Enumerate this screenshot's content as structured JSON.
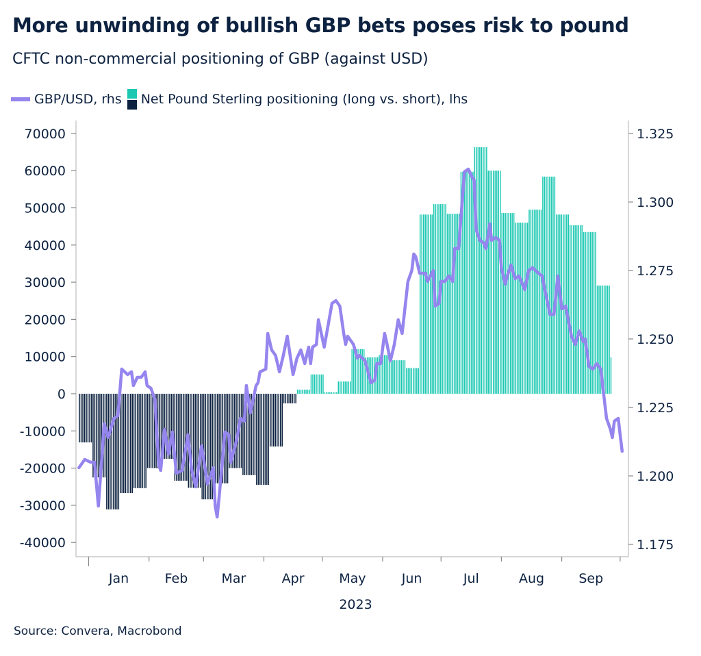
{
  "title": "More unwinding of bullish GBP bets poses risk to pound",
  "subtitle": "CFTC non-commercial positioning of GBP (against USD)",
  "source": "Source: Convera, Macrobond",
  "legend": {
    "line_label": "GBP/USD, rhs",
    "bar_label": "Net Pound Sterling positioning (long vs. short), lhs"
  },
  "colors": {
    "line": "#9585ee",
    "bar_positive": "#1cc8b2",
    "bar_negative": "#0d2240",
    "text": "#0d2240",
    "axis": "#c8c8c8"
  },
  "chart_data": {
    "type": "bar+line",
    "title": "More unwinding of bullish GBP bets poses risk to pound",
    "xlabel": "2023",
    "x_ticks": [
      "Jan",
      "Feb",
      "Mar",
      "Apr",
      "May",
      "Jun",
      "Jul",
      "Aug",
      "Sep"
    ],
    "y_left": {
      "ticks": [
        "70000",
        "60000",
        "50000",
        "40000",
        "30000",
        "20000",
        "10000",
        "0",
        "-10000",
        "-20000",
        "-30000",
        "-40000"
      ],
      "ylim": [
        -40000,
        70000
      ]
    },
    "y_right": {
      "ticks": [
        "1.325",
        "1.300",
        "1.275",
        "1.250",
        "1.225",
        "1.200",
        "1.175"
      ],
      "ylim": [
        1.175,
        1.325
      ]
    },
    "grid": false,
    "legend_position": "top-left",
    "bars": {
      "name": "Net Pound Sterling positioning (long vs. short), lhs",
      "axis": "left",
      "points": [
        [
          "2022-12-27",
          -13100
        ],
        [
          "2023-01-03",
          -22500
        ],
        [
          "2023-01-10",
          -31100
        ],
        [
          "2023-01-17",
          -26700
        ],
        [
          "2023-01-24",
          -25400
        ],
        [
          "2023-01-31",
          -20000
        ],
        [
          "2023-02-07",
          -17500
        ],
        [
          "2023-02-14",
          -23400
        ],
        [
          "2023-02-21",
          -25300
        ],
        [
          "2023-02-28",
          -28400
        ],
        [
          "2023-03-07",
          -24100
        ],
        [
          "2023-03-14",
          -20000
        ],
        [
          "2023-03-21",
          -21900
        ],
        [
          "2023-03-28",
          -24500
        ],
        [
          "2023-04-04",
          -14200
        ],
        [
          "2023-04-11",
          -2600
        ],
        [
          "2023-04-18",
          1100
        ],
        [
          "2023-04-25",
          5200
        ],
        [
          "2023-05-02",
          400
        ],
        [
          "2023-05-09",
          3300
        ],
        [
          "2023-05-16",
          12000
        ],
        [
          "2023-05-23",
          9800
        ],
        [
          "2023-05-30",
          10400
        ],
        [
          "2023-06-06",
          9000
        ],
        [
          "2023-06-13",
          6900
        ],
        [
          "2023-06-20",
          48200
        ],
        [
          "2023-06-27",
          51000
        ],
        [
          "2023-07-04",
          48400
        ],
        [
          "2023-07-11",
          59700
        ],
        [
          "2023-07-18",
          66300
        ],
        [
          "2023-07-25",
          60000
        ],
        [
          "2023-08-01",
          48600
        ],
        [
          "2023-08-08",
          46000
        ],
        [
          "2023-08-15",
          49500
        ],
        [
          "2023-08-22",
          58400
        ],
        [
          "2023-08-29",
          48200
        ],
        [
          "2023-09-05",
          45300
        ],
        [
          "2023-09-12",
          43500
        ],
        [
          "2023-09-19",
          29100
        ],
        [
          "2023-09-26",
          9800
        ]
      ]
    },
    "line": {
      "name": "GBP/USD, rhs",
      "axis": "right",
      "points": [
        [
          "2022-12-27",
          1.203
        ],
        [
          "2022-12-30",
          1.206
        ],
        [
          "2023-01-02",
          1.205
        ],
        [
          "2023-01-04",
          1.205
        ],
        [
          "2023-01-06",
          1.189
        ],
        [
          "2023-01-09",
          1.219
        ],
        [
          "2023-01-11",
          1.214
        ],
        [
          "2023-01-14",
          1.221
        ],
        [
          "2023-01-16",
          1.222
        ],
        [
          "2023-01-18",
          1.239
        ],
        [
          "2023-01-21",
          1.237
        ],
        [
          "2023-01-23",
          1.238
        ],
        [
          "2023-01-24",
          1.233
        ],
        [
          "2023-01-26",
          1.236
        ],
        [
          "2023-01-28",
          1.236
        ],
        [
          "2023-01-30",
          1.238
        ],
        [
          "2023-01-31",
          1.233
        ],
        [
          "2023-02-02",
          1.232
        ],
        [
          "2023-02-04",
          1.228
        ],
        [
          "2023-02-06",
          1.204
        ],
        [
          "2023-02-07",
          1.202
        ],
        [
          "2023-02-09",
          1.217
        ],
        [
          "2023-02-11",
          1.208
        ],
        [
          "2023-02-13",
          1.216
        ],
        [
          "2023-02-15",
          1.201
        ],
        [
          "2023-02-18",
          1.202
        ],
        [
          "2023-02-21",
          1.215
        ],
        [
          "2023-02-23",
          1.202
        ],
        [
          "2023-02-25",
          1.196
        ],
        [
          "2023-02-28",
          1.211
        ],
        [
          "2023-03-03",
          1.197
        ],
        [
          "2023-03-06",
          1.203
        ],
        [
          "2023-03-07",
          1.189
        ],
        [
          "2023-03-08",
          1.185
        ],
        [
          "2023-03-09",
          1.192
        ],
        [
          "2023-03-12",
          1.216
        ],
        [
          "2023-03-14",
          1.215
        ],
        [
          "2023-03-15",
          1.205
        ],
        [
          "2023-03-18",
          1.213
        ],
        [
          "2023-03-20",
          1.221
        ],
        [
          "2023-03-22",
          1.22
        ],
        [
          "2023-03-23",
          1.233
        ],
        [
          "2023-03-25",
          1.223
        ],
        [
          "2023-03-28",
          1.233
        ],
        [
          "2023-03-29",
          1.234
        ],
        [
          "2023-03-30",
          1.238
        ],
        [
          "2023-04-02",
          1.239
        ],
        [
          "2023-04-03",
          1.252
        ],
        [
          "2023-04-05",
          1.246
        ],
        [
          "2023-04-07",
          1.244
        ],
        [
          "2023-04-09",
          1.238
        ],
        [
          "2023-04-11",
          1.244
        ],
        [
          "2023-04-13",
          1.251
        ],
        [
          "2023-04-16",
          1.237
        ],
        [
          "2023-04-18",
          1.243
        ],
        [
          "2023-04-20",
          1.246
        ],
        [
          "2023-04-22",
          1.241
        ],
        [
          "2023-04-24",
          1.247
        ],
        [
          "2023-04-25",
          1.241
        ],
        [
          "2023-04-26",
          1.247
        ],
        [
          "2023-04-28",
          1.248
        ],
        [
          "2023-04-29",
          1.257
        ],
        [
          "2023-05-02",
          1.247
        ],
        [
          "2023-05-04",
          1.255
        ],
        [
          "2023-05-06",
          1.263
        ],
        [
          "2023-05-08",
          1.264
        ],
        [
          "2023-05-10",
          1.262
        ],
        [
          "2023-05-12",
          1.252
        ],
        [
          "2023-05-13",
          1.248
        ],
        [
          "2023-05-14",
          1.251
        ],
        [
          "2023-05-17",
          1.248
        ],
        [
          "2023-05-19",
          1.243
        ],
        [
          "2023-05-20",
          1.244
        ],
        [
          "2023-05-23",
          1.242
        ],
        [
          "2023-05-26",
          1.234
        ],
        [
          "2023-05-28",
          1.235
        ],
        [
          "2023-05-29",
          1.241
        ],
        [
          "2023-05-31",
          1.241
        ],
        [
          "2023-06-02",
          1.252
        ],
        [
          "2023-06-03",
          1.249
        ],
        [
          "2023-06-05",
          1.242
        ],
        [
          "2023-06-07",
          1.248
        ],
        [
          "2023-06-09",
          1.257
        ],
        [
          "2023-06-11",
          1.252
        ],
        [
          "2023-06-14",
          1.271
        ],
        [
          "2023-06-16",
          1.275
        ],
        [
          "2023-06-17",
          1.281
        ],
        [
          "2023-06-18",
          1.28
        ],
        [
          "2023-06-20",
          1.274
        ],
        [
          "2023-06-23",
          1.274
        ],
        [
          "2023-06-24",
          1.271
        ],
        [
          "2023-06-27",
          1.275
        ],
        [
          "2023-06-28",
          1.262
        ],
        [
          "2023-06-30",
          1.263
        ],
        [
          "2023-07-01",
          1.271
        ],
        [
          "2023-07-03",
          1.271
        ],
        [
          "2023-07-05",
          1.273
        ],
        [
          "2023-07-07",
          1.271
        ],
        [
          "2023-07-08",
          1.283
        ],
        [
          "2023-07-10",
          1.283
        ],
        [
          "2023-07-11",
          1.292
        ],
        [
          "2023-07-13",
          1.311
        ],
        [
          "2023-07-15",
          1.312
        ],
        [
          "2023-07-17",
          1.309
        ],
        [
          "2023-07-18",
          1.308
        ],
        [
          "2023-07-19",
          1.29
        ],
        [
          "2023-07-21",
          1.286
        ],
        [
          "2023-07-23",
          1.285
        ],
        [
          "2023-07-24",
          1.283
        ],
        [
          "2023-07-25",
          1.287
        ],
        [
          "2023-07-26",
          1.292
        ],
        [
          "2023-07-27",
          1.286
        ],
        [
          "2023-07-29",
          1.287
        ],
        [
          "2023-07-31",
          1.286
        ],
        [
          "2023-08-01",
          1.276
        ],
        [
          "2023-08-03",
          1.27
        ],
        [
          "2023-08-04",
          1.273
        ],
        [
          "2023-08-06",
          1.277
        ],
        [
          "2023-08-08",
          1.272
        ],
        [
          "2023-08-10",
          1.273
        ],
        [
          "2023-08-13",
          1.268
        ],
        [
          "2023-08-15",
          1.275
        ],
        [
          "2023-08-17",
          1.276
        ],
        [
          "2023-08-20",
          1.274
        ],
        [
          "2023-08-22",
          1.273
        ],
        [
          "2023-08-23",
          1.269
        ],
        [
          "2023-08-26",
          1.259
        ],
        [
          "2023-08-28",
          1.259
        ],
        [
          "2023-08-30",
          1.273
        ],
        [
          "2023-09-01",
          1.261
        ],
        [
          "2023-09-03",
          1.262
        ],
        [
          "2023-09-06",
          1.251
        ],
        [
          "2023-09-08",
          1.248
        ],
        [
          "2023-09-10",
          1.253
        ],
        [
          "2023-09-12",
          1.249
        ],
        [
          "2023-09-13",
          1.25
        ],
        [
          "2023-09-15",
          1.24
        ],
        [
          "2023-09-17",
          1.239
        ],
        [
          "2023-09-19",
          1.241
        ],
        [
          "2023-09-21",
          1.239
        ],
        [
          "2023-09-23",
          1.227
        ],
        [
          "2023-09-24",
          1.221
        ],
        [
          "2023-09-26",
          1.217
        ],
        [
          "2023-09-27",
          1.214
        ],
        [
          "2023-09-28",
          1.22
        ],
        [
          "2023-09-30",
          1.221
        ],
        [
          "2023-10-01",
          1.215
        ],
        [
          "2023-10-02",
          1.209
        ]
      ]
    }
  }
}
